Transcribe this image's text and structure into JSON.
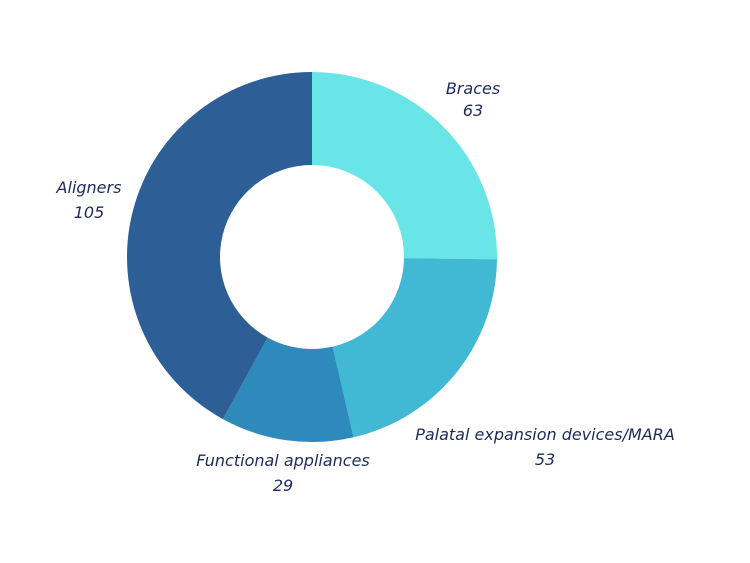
{
  "chart_data": {
    "type": "pie",
    "variant": "donut",
    "title": "",
    "slices": [
      {
        "label": "Braces",
        "value": 63,
        "color": "#69E5E8"
      },
      {
        "label": "Palatal expansion devices/MARA",
        "value": 53,
        "color": "#41B8D4"
      },
      {
        "label": "Functional appliances",
        "value": 29,
        "color": "#2E8ABB"
      },
      {
        "label": "Aligners",
        "value": 105,
        "color": "#2D5F96"
      }
    ],
    "start_angle_deg": 0,
    "direction": "clockwise",
    "legend": "none",
    "data_labels": "outside"
  }
}
